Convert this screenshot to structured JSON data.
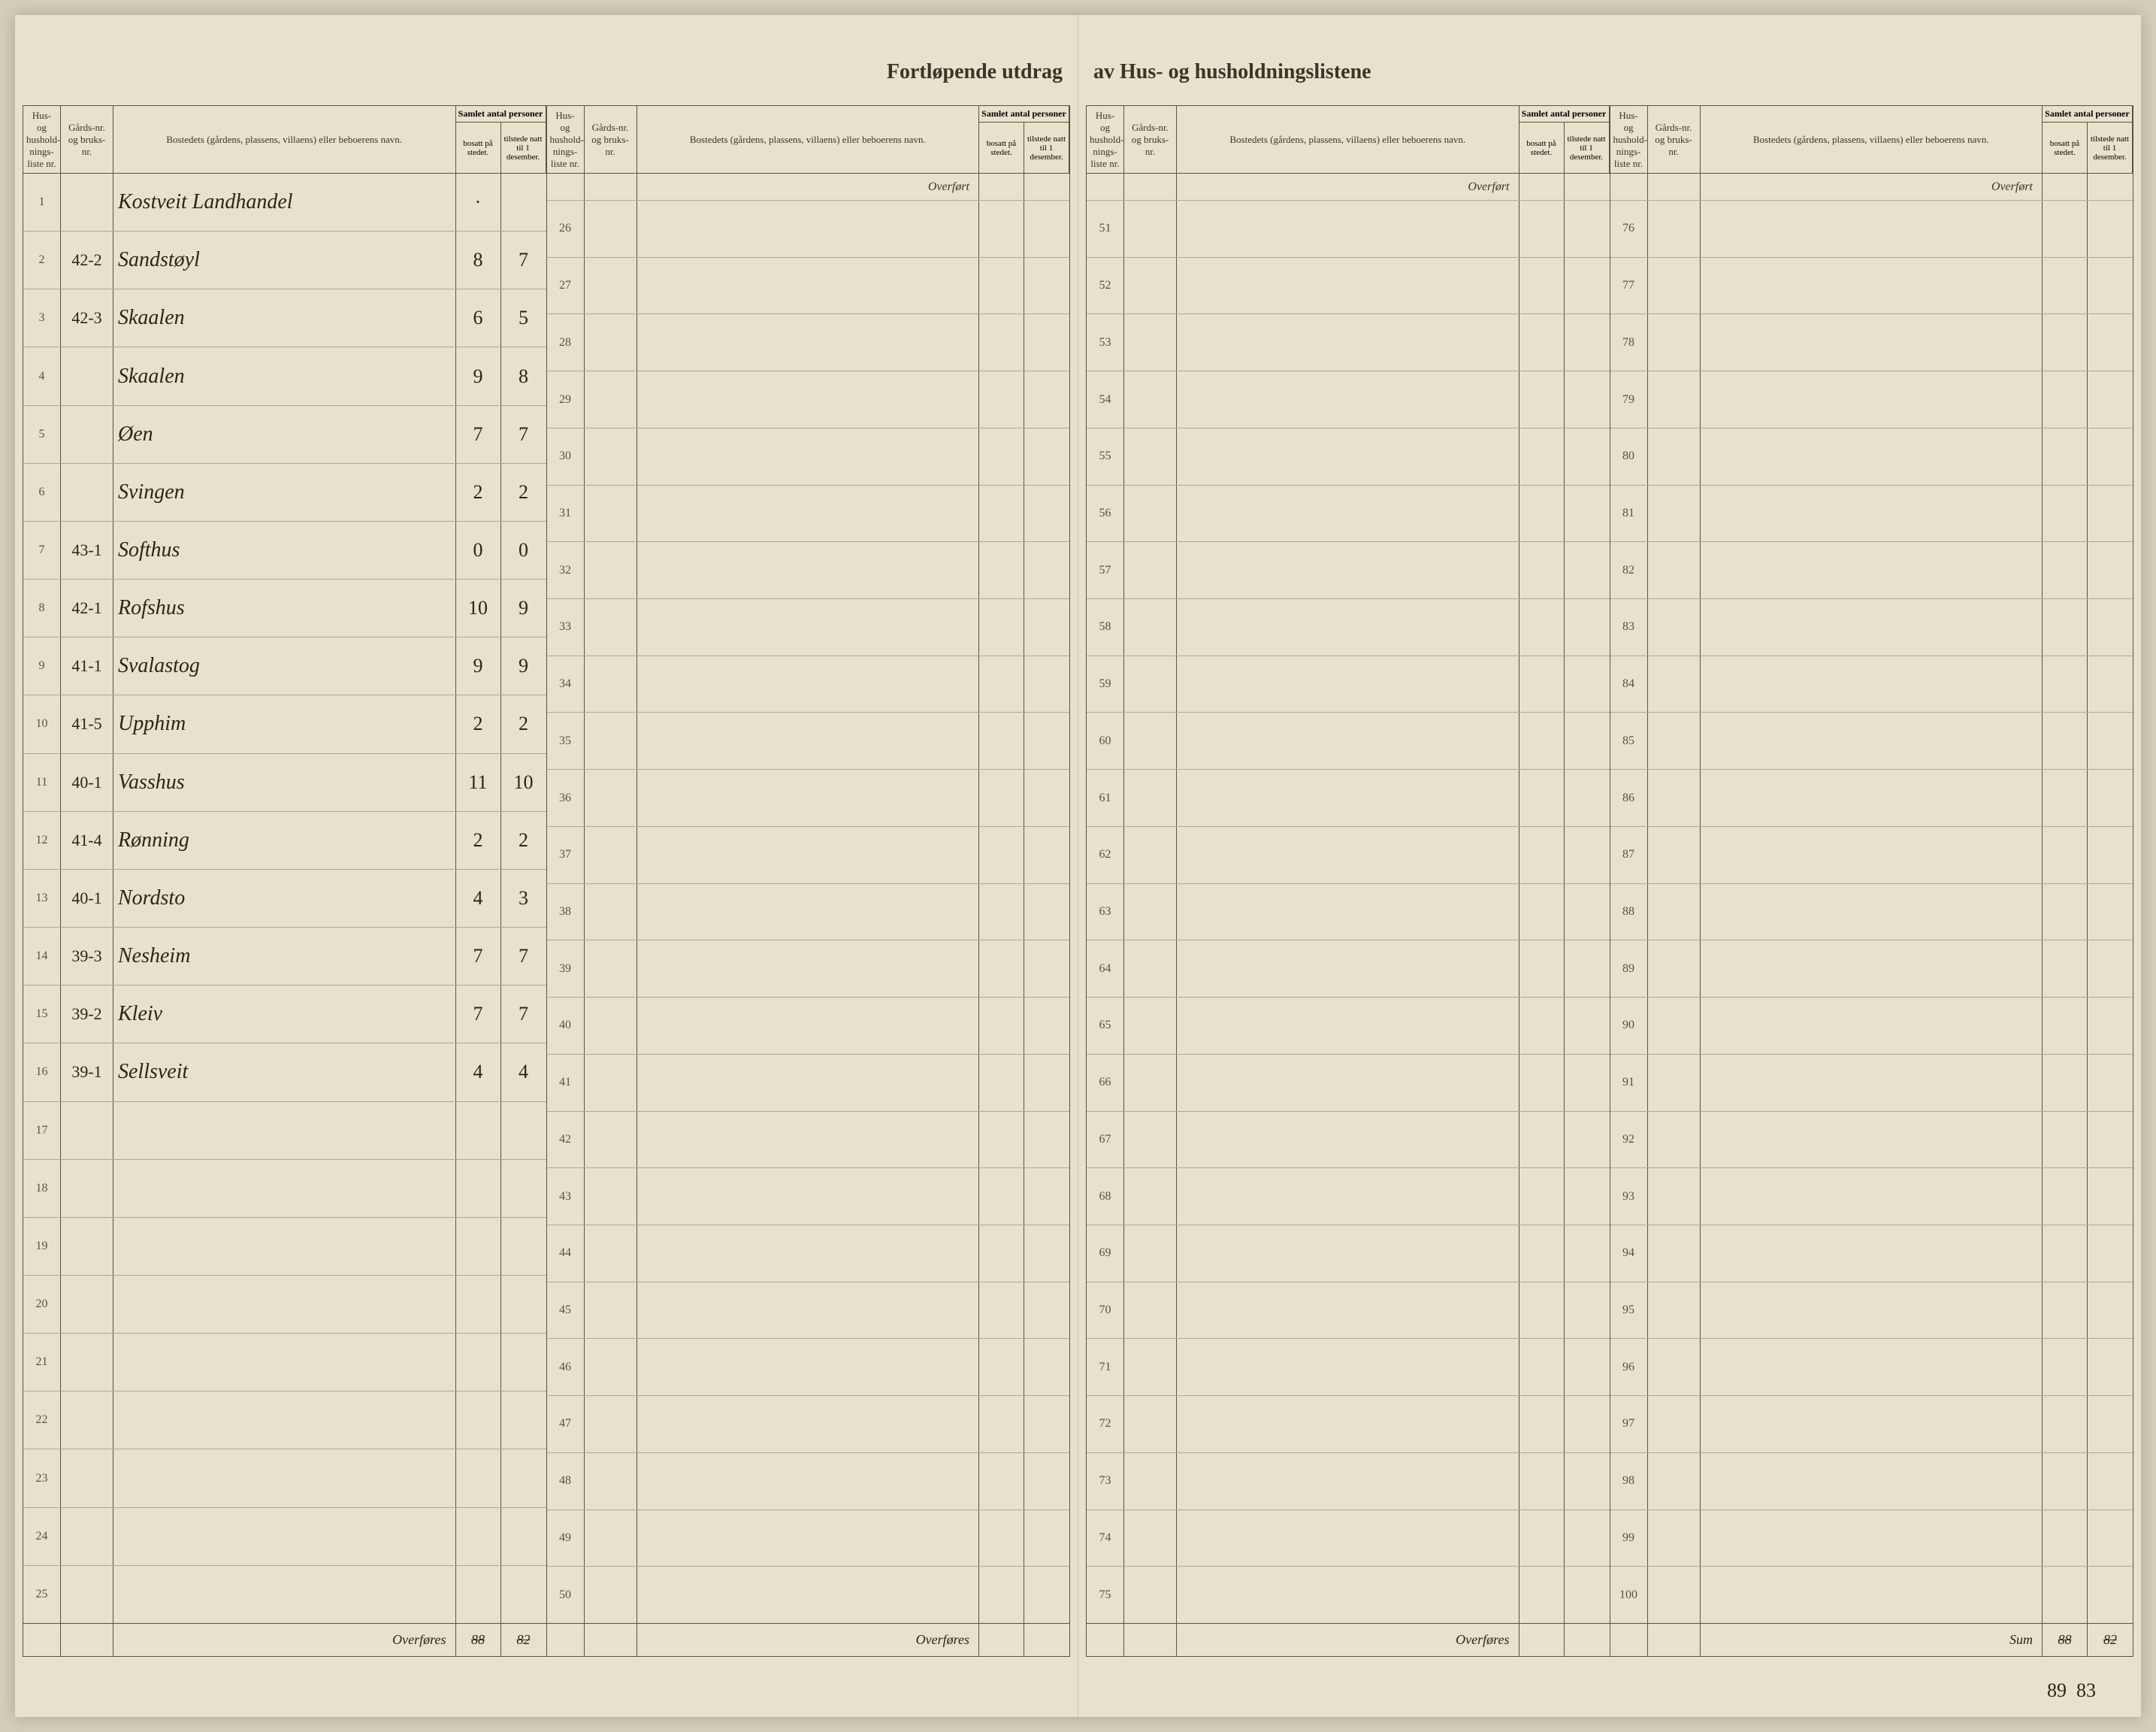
{
  "title_left": "Fortløpende utdrag",
  "title_right": "av Hus- og husholdningslistene",
  "headers": {
    "hus_nr": "Hus- og hushold-nings-liste nr.",
    "gard_nr": "Gårds-nr. og bruks-nr.",
    "bosted": "Bostedets (gårdens, plassens, villaens) eller beboerens navn.",
    "samlet": "Samlet antal personer",
    "bosatt": "bosatt på stedet.",
    "tilstede": "tilstede natt til 1 desember."
  },
  "overfort": "Overført",
  "overfores": "Overføres",
  "sum": "Sum",
  "col1": {
    "rows": [
      {
        "nr": "1",
        "gard": "",
        "bosted": "Kostveit Landhandel",
        "bosatt": "·",
        "tilstede": ""
      },
      {
        "nr": "2",
        "gard": "42-2",
        "bosted": "Sandstøyl",
        "bosatt": "8",
        "tilstede": "7"
      },
      {
        "nr": "3",
        "gard": "42-3",
        "bosted": "Skaalen",
        "bosatt": "6",
        "tilstede": "5"
      },
      {
        "nr": "4",
        "gard": "",
        "bosted": "Skaalen",
        "bosatt": "9",
        "tilstede": "8"
      },
      {
        "nr": "5",
        "gard": "",
        "bosted": "Øen",
        "bosatt": "7",
        "tilstede": "7"
      },
      {
        "nr": "6",
        "gard": "",
        "bosted": "Svingen",
        "bosatt": "2",
        "tilstede": "2"
      },
      {
        "nr": "7",
        "gard": "43-1",
        "bosted": "Softhus",
        "bosatt": "0",
        "tilstede": "0"
      },
      {
        "nr": "8",
        "gard": "42-1",
        "bosted": "Rofshus",
        "bosatt": "10",
        "tilstede": "9"
      },
      {
        "nr": "9",
        "gard": "41-1",
        "bosted": "Svalastog",
        "bosatt": "9",
        "tilstede": "9"
      },
      {
        "nr": "10",
        "gard": "41-5",
        "bosted": "Upphim",
        "bosatt": "2",
        "tilstede": "2"
      },
      {
        "nr": "11",
        "gard": "40-1",
        "bosted": "Vasshus",
        "bosatt": "11",
        "tilstede": "10"
      },
      {
        "nr": "12",
        "gard": "41-4",
        "bosted": "Rønning",
        "bosatt": "2",
        "tilstede": "2"
      },
      {
        "nr": "13",
        "gard": "40-1",
        "bosted": "Nordsto",
        "bosatt": "4",
        "tilstede": "3"
      },
      {
        "nr": "14",
        "gard": "39-3",
        "bosted": "Nesheim",
        "bosatt": "7",
        "tilstede": "7"
      },
      {
        "nr": "15",
        "gard": "39-2",
        "bosted": "Kleiv",
        "bosatt": "7",
        "tilstede": "7"
      },
      {
        "nr": "16",
        "gard": "39-1",
        "bosted": "Sellsveit",
        "bosatt": "4",
        "tilstede": "4"
      },
      {
        "nr": "17",
        "gard": "",
        "bosted": "",
        "bosatt": "",
        "tilstede": ""
      },
      {
        "nr": "18",
        "gard": "",
        "bosted": "",
        "bosatt": "",
        "tilstede": ""
      },
      {
        "nr": "19",
        "gard": "",
        "bosted": "",
        "bosatt": "",
        "tilstede": ""
      },
      {
        "nr": "20",
        "gard": "",
        "bosted": "",
        "bosatt": "",
        "tilstede": ""
      },
      {
        "nr": "21",
        "gard": "",
        "bosted": "",
        "bosatt": "",
        "tilstede": ""
      },
      {
        "nr": "22",
        "gard": "",
        "bosted": "",
        "bosatt": "",
        "tilstede": ""
      },
      {
        "nr": "23",
        "gard": "",
        "bosted": "",
        "bosatt": "",
        "tilstede": ""
      },
      {
        "nr": "24",
        "gard": "",
        "bosted": "",
        "bosatt": "",
        "tilstede": ""
      },
      {
        "nr": "25",
        "gard": "",
        "bosted": "",
        "bosatt": "",
        "tilstede": ""
      }
    ],
    "footer_bosatt": "88",
    "footer_tilstede": "82"
  },
  "col2": {
    "rows": [
      {
        "nr": "26"
      },
      {
        "nr": "27"
      },
      {
        "nr": "28"
      },
      {
        "nr": "29"
      },
      {
        "nr": "30"
      },
      {
        "nr": "31"
      },
      {
        "nr": "32"
      },
      {
        "nr": "33"
      },
      {
        "nr": "34"
      },
      {
        "nr": "35"
      },
      {
        "nr": "36"
      },
      {
        "nr": "37"
      },
      {
        "nr": "38"
      },
      {
        "nr": "39"
      },
      {
        "nr": "40"
      },
      {
        "nr": "41"
      },
      {
        "nr": "42"
      },
      {
        "nr": "43"
      },
      {
        "nr": "44"
      },
      {
        "nr": "45"
      },
      {
        "nr": "46"
      },
      {
        "nr": "47"
      },
      {
        "nr": "48"
      },
      {
        "nr": "49"
      },
      {
        "nr": "50"
      }
    ]
  },
  "col3": {
    "rows": [
      {
        "nr": "51"
      },
      {
        "nr": "52"
      },
      {
        "nr": "53"
      },
      {
        "nr": "54"
      },
      {
        "nr": "55"
      },
      {
        "nr": "56"
      },
      {
        "nr": "57"
      },
      {
        "nr": "58"
      },
      {
        "nr": "59"
      },
      {
        "nr": "60"
      },
      {
        "nr": "61"
      },
      {
        "nr": "62"
      },
      {
        "nr": "63"
      },
      {
        "nr": "64"
      },
      {
        "nr": "65"
      },
      {
        "nr": "66"
      },
      {
        "nr": "67"
      },
      {
        "nr": "68"
      },
      {
        "nr": "69"
      },
      {
        "nr": "70"
      },
      {
        "nr": "71"
      },
      {
        "nr": "72"
      },
      {
        "nr": "73"
      },
      {
        "nr": "74"
      },
      {
        "nr": "75"
      }
    ]
  },
  "col4": {
    "rows": [
      {
        "nr": "76"
      },
      {
        "nr": "77"
      },
      {
        "nr": "78"
      },
      {
        "nr": "79"
      },
      {
        "nr": "80"
      },
      {
        "nr": "81"
      },
      {
        "nr": "82"
      },
      {
        "nr": "83"
      },
      {
        "nr": "84"
      },
      {
        "nr": "85"
      },
      {
        "nr": "86"
      },
      {
        "nr": "87"
      },
      {
        "nr": "88"
      },
      {
        "nr": "89"
      },
      {
        "nr": "90"
      },
      {
        "nr": "91"
      },
      {
        "nr": "92"
      },
      {
        "nr": "93"
      },
      {
        "nr": "94"
      },
      {
        "nr": "95"
      },
      {
        "nr": "96"
      },
      {
        "nr": "97"
      },
      {
        "nr": "98"
      },
      {
        "nr": "99"
      },
      {
        "nr": "100"
      }
    ],
    "sum_bosatt": "88",
    "sum_tilstede": "82",
    "sum_bosatt2": "89",
    "sum_tilstede2": "83"
  },
  "colors": {
    "paper": "#e8e1cc",
    "ink": "#2a2518",
    "rule": "#5a5240"
  }
}
